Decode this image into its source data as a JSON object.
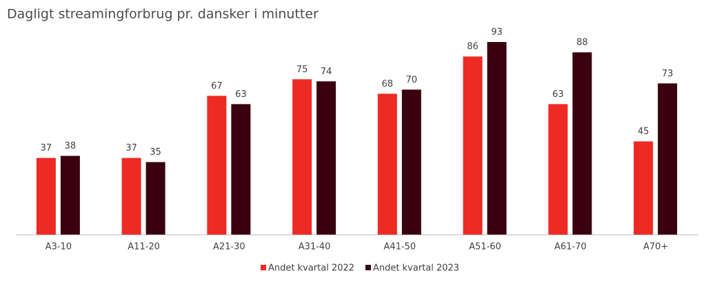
{
  "chart_data": {
    "type": "bar",
    "title": "Dagligt streamingforbrug pr. dansker i minutter",
    "categories": [
      "A3-10",
      "A11-20",
      "A21-30",
      "A31-40",
      "A41-50",
      "A51-60",
      "A61-70",
      "A70+"
    ],
    "series": [
      {
        "name": "Andet kvartal 2022",
        "color": "#ee2a24",
        "values": [
          37,
          37,
          67,
          75,
          68,
          86,
          63,
          45
        ]
      },
      {
        "name": "Andet kvartal 2023",
        "color": "#3a0010",
        "values": [
          38,
          35,
          63,
          74,
          70,
          93,
          88,
          73
        ]
      }
    ],
    "legend": "bottom"
  }
}
